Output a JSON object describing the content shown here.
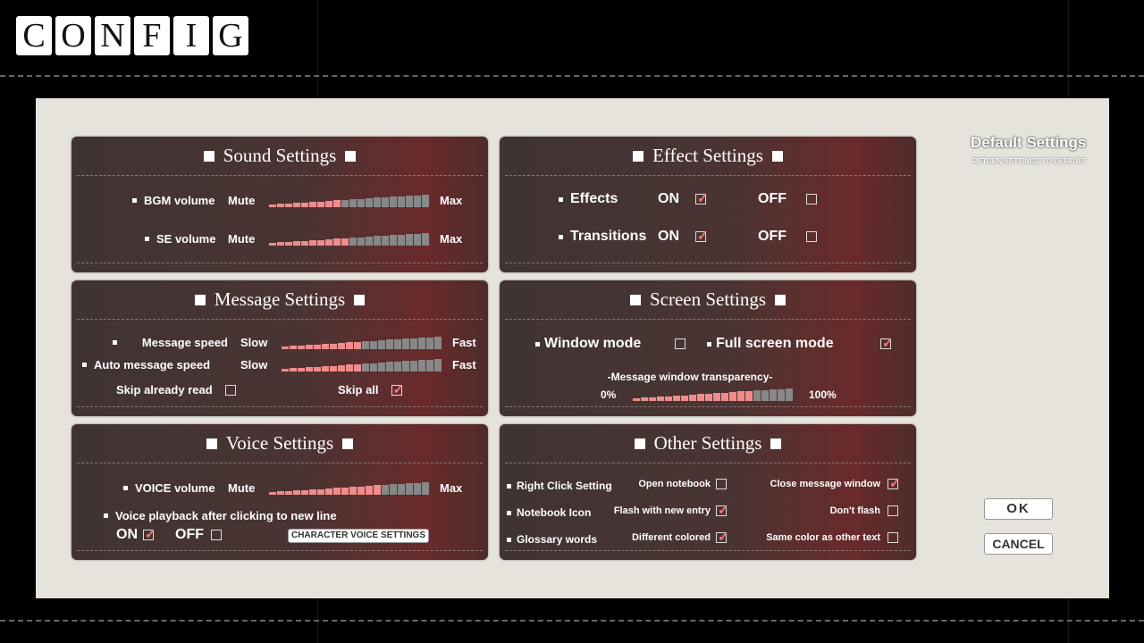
{
  "header": {
    "title_letters": [
      "C",
      "O",
      "N",
      "F",
      "I",
      "G"
    ]
  },
  "sound": {
    "title": "Sound Settings",
    "bgm": {
      "label": "BGM volume",
      "min": "Mute",
      "max": "Max",
      "level": 9,
      "steps": 20
    },
    "se": {
      "label": "SE volume",
      "min": "Mute",
      "max": "Max",
      "level": 10,
      "steps": 20
    }
  },
  "effect": {
    "title": "Effect Settings",
    "effects": {
      "label": "Effects",
      "on": "ON",
      "off": "OFF",
      "value": "ON"
    },
    "transitions": {
      "label": "Transitions",
      "on": "ON",
      "off": "OFF",
      "value": "ON"
    }
  },
  "message": {
    "title": "Message Settings",
    "speed": {
      "label": "Message speed",
      "min": "Slow",
      "max": "Fast",
      "level": 10,
      "steps": 20
    },
    "auto": {
      "label": "Auto message speed",
      "min": "Slow",
      "max": "Fast",
      "level": 10,
      "steps": 20
    },
    "skip_read": {
      "label": "Skip already read",
      "checked": false
    },
    "skip_all": {
      "label": "Skip all",
      "checked": true
    }
  },
  "screen": {
    "title": "Screen Settings",
    "window": {
      "label": "Window mode",
      "checked": false
    },
    "full": {
      "label": "Full screen mode",
      "checked": true
    },
    "transparency": {
      "label": "-Message window transparency-",
      "min": "0%",
      "max": "100%",
      "level": 15,
      "steps": 20
    }
  },
  "voice": {
    "title": "Voice Settings",
    "volume": {
      "label": "VOICE volume",
      "min": "Mute",
      "max": "Max",
      "level": 14,
      "steps": 20
    },
    "playback": {
      "label": "Voice playback after clicking to new line",
      "on": "ON",
      "off": "OFF",
      "value": "ON"
    },
    "char_button": "CHARACTER VOICE SETTINGS"
  },
  "other": {
    "title": "Other Settings",
    "rows": [
      {
        "label": "Right Click Setting",
        "a": "Open notebook",
        "a_checked": false,
        "b": "Close message window",
        "b_checked": true
      },
      {
        "label": "Notebook Icon",
        "a": "Flash with new entry",
        "a_checked": true,
        "b": "Don't flash",
        "b_checked": false
      },
      {
        "label": "Glossary words",
        "a": "Different colored",
        "a_checked": true,
        "b": "Same color as other text",
        "b_checked": false
      }
    ]
  },
  "side": {
    "default_title": "Default Settings",
    "default_sub": "RETURN SETTINGS TO DEFAULT",
    "ok": "OK",
    "cancel": "CANCEL"
  },
  "colors": {
    "bar_on": "#f08c8c",
    "bar_off": "#888888",
    "panel": "#45342f"
  }
}
